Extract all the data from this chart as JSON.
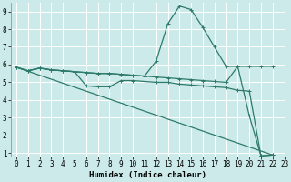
{
  "xlabel": "Humidex (Indice chaleur)",
  "bg_color": "#cceaea",
  "line_color": "#2d7a6b",
  "grid_color": "#ffffff",
  "xlim": [
    -0.5,
    23
  ],
  "ylim": [
    0.8,
    9.5
  ],
  "xticks": [
    0,
    1,
    2,
    3,
    4,
    5,
    6,
    7,
    8,
    9,
    10,
    11,
    12,
    13,
    14,
    15,
    16,
    17,
    18,
    19,
    20,
    21,
    22,
    23
  ],
  "yticks": [
    1,
    2,
    3,
    4,
    5,
    6,
    7,
    8,
    9
  ],
  "line1_x": [
    0,
    1,
    2,
    3,
    4,
    5,
    6,
    7,
    8,
    9,
    10,
    11,
    12,
    13,
    14,
    15,
    16,
    17,
    18,
    19,
    20,
    21,
    22
  ],
  "line1_y": [
    5.85,
    5.65,
    5.8,
    5.7,
    5.65,
    5.6,
    5.55,
    5.5,
    5.5,
    5.45,
    5.4,
    5.35,
    5.3,
    5.25,
    5.2,
    5.15,
    5.1,
    5.05,
    5.0,
    5.9,
    3.1,
    0.85,
    0.9
  ],
  "line2_x": [
    0,
    1,
    2,
    3,
    4,
    5,
    6,
    7,
    8,
    9,
    10,
    11,
    12,
    13,
    14,
    15,
    16,
    17,
    18,
    19,
    20,
    21,
    22
  ],
  "line2_y": [
    5.85,
    5.65,
    5.8,
    5.7,
    5.65,
    5.6,
    5.55,
    5.5,
    5.5,
    5.45,
    5.4,
    5.35,
    6.2,
    8.3,
    9.3,
    9.1,
    8.1,
    7.0,
    5.9,
    5.9,
    5.9,
    5.9,
    5.9
  ],
  "line3_x": [
    0,
    1,
    2,
    3,
    4,
    5,
    6,
    7,
    8,
    9,
    10,
    11,
    12,
    13,
    14,
    15,
    16,
    17,
    18,
    19,
    20,
    21,
    22
  ],
  "line3_y": [
    5.85,
    5.65,
    5.8,
    5.7,
    5.65,
    5.6,
    4.8,
    4.75,
    4.75,
    5.1,
    5.1,
    5.05,
    5.0,
    5.0,
    4.9,
    4.85,
    4.8,
    4.75,
    4.7,
    4.55,
    4.5,
    0.85,
    0.9
  ],
  "line4_x": [
    0,
    22
  ],
  "line4_y": [
    5.85,
    0.9
  ],
  "marker": "+",
  "markersize": 3,
  "linewidth": 0.9,
  "label_fontsize": 6.5,
  "tick_fontsize": 5.5
}
